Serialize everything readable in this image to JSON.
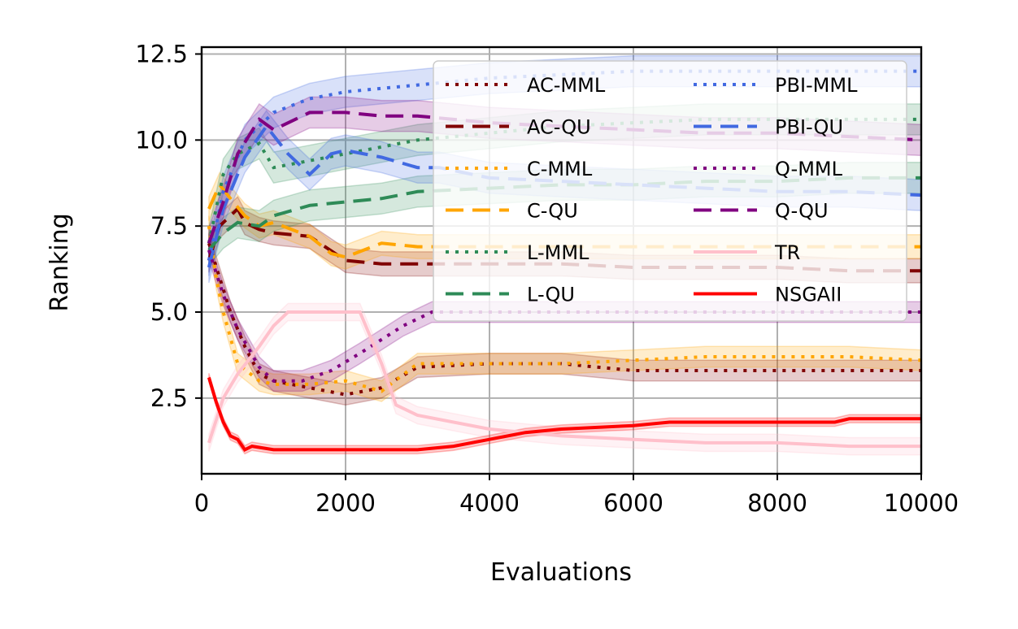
{
  "chart_data": {
    "type": "line",
    "title": "",
    "xlabel": "Evaluations",
    "ylabel": "Ranking",
    "xlim": [
      0,
      10000
    ],
    "ylim": [
      0.3,
      12.7
    ],
    "xticks": [
      0,
      2000,
      4000,
      6000,
      8000,
      10000
    ],
    "xtick_labels": [
      "0",
      "2000",
      "4000",
      "6000",
      "8000",
      "10000"
    ],
    "yticks": [
      2.5,
      5.0,
      7.5,
      10.0,
      12.5
    ],
    "ytick_labels": [
      "2.5",
      "5.0",
      "7.5",
      "10.0",
      "12.5"
    ],
    "grid": true,
    "legend_position": "top-right",
    "series": [
      {
        "name": "AC-MML",
        "color": "#800000",
        "style": "dotted",
        "x": [
          100,
          250,
          400,
          600,
          800,
          1000,
          1500,
          2000,
          2500,
          3000,
          4000,
          5000,
          6000,
          7000,
          8000,
          9000,
          10000
        ],
        "y": [
          7.0,
          6.0,
          5.0,
          4.0,
          3.2,
          3.0,
          2.8,
          2.6,
          2.8,
          3.4,
          3.5,
          3.5,
          3.3,
          3.3,
          3.3,
          3.3,
          3.3
        ],
        "band": 0.3
      },
      {
        "name": "AC-QU",
        "color": "#800000",
        "style": "dashed",
        "x": [
          100,
          250,
          400,
          500,
          600,
          800,
          1000,
          1500,
          2000,
          2500,
          3000,
          4000,
          5000,
          6000,
          7000,
          8000,
          9000,
          10000
        ],
        "y": [
          6.5,
          7.5,
          7.8,
          8.0,
          7.6,
          7.4,
          7.3,
          7.2,
          6.5,
          6.4,
          6.4,
          6.4,
          6.4,
          6.3,
          6.3,
          6.3,
          6.2,
          6.2
        ],
        "band": 0.35
      },
      {
        "name": "C-MML",
        "color": "#ffa500",
        "style": "dotted",
        "x": [
          100,
          200,
          300,
          500,
          800,
          1000,
          1500,
          2000,
          2500,
          3000,
          4000,
          5000,
          6000,
          7000,
          8000,
          9000,
          10000
        ],
        "y": [
          7.5,
          6.0,
          5.0,
          3.5,
          3.0,
          2.9,
          2.9,
          3.0,
          2.7,
          3.5,
          3.5,
          3.5,
          3.6,
          3.7,
          3.7,
          3.7,
          3.6
        ],
        "band": 0.3
      },
      {
        "name": "C-QU",
        "color": "#ffa500",
        "style": "dashed",
        "x": [
          100,
          250,
          400,
          600,
          800,
          1000,
          1500,
          1800,
          2000,
          2500,
          3000,
          4000,
          5000,
          6000,
          7000,
          8000,
          9000,
          10000
        ],
        "y": [
          8.0,
          8.7,
          8.3,
          7.8,
          7.5,
          7.6,
          7.2,
          6.7,
          6.6,
          7.0,
          6.9,
          6.9,
          6.9,
          6.9,
          6.9,
          6.9,
          6.9,
          6.9
        ],
        "band": 0.35
      },
      {
        "name": "L-MML",
        "color": "#2e8b57",
        "style": "dotted",
        "x": [
          100,
          300,
          500,
          800,
          1000,
          1500,
          2000,
          2500,
          3000,
          4000,
          5000,
          6000,
          7000,
          8000,
          9000,
          10000
        ],
        "y": [
          7.0,
          9.0,
          9.6,
          9.9,
          9.2,
          9.4,
          9.6,
          9.8,
          10.0,
          10.2,
          10.4,
          10.5,
          10.6,
          10.6,
          10.6,
          10.6
        ],
        "band": 0.45
      },
      {
        "name": "L-QU",
        "color": "#2e8b57",
        "style": "dashed",
        "x": [
          100,
          300,
          500,
          800,
          1000,
          1500,
          2000,
          2500,
          3000,
          4000,
          5000,
          6000,
          7000,
          8000,
          9000,
          10000
        ],
        "y": [
          6.8,
          7.3,
          7.6,
          7.5,
          7.8,
          8.1,
          8.2,
          8.3,
          8.5,
          8.6,
          8.7,
          8.7,
          8.8,
          8.8,
          8.9,
          8.9
        ],
        "band": 0.45
      },
      {
        "name": "PBI-MML",
        "color": "#4169e1",
        "style": "dotted",
        "x": [
          100,
          300,
          600,
          1000,
          1500,
          2000,
          3000,
          4000,
          5000,
          6000,
          7000,
          8000,
          9000,
          10000
        ],
        "y": [
          6.5,
          8.5,
          10.0,
          10.8,
          11.2,
          11.4,
          11.6,
          11.8,
          11.9,
          12.0,
          12.0,
          12.0,
          12.0,
          12.0
        ],
        "band": 0.45
      },
      {
        "name": "PBI-QU",
        "color": "#4169e1",
        "style": "dashed",
        "x": [
          100,
          300,
          600,
          900,
          1200,
          1500,
          1800,
          2000,
          2500,
          3000,
          3300,
          4000,
          5000,
          6000,
          7000,
          8000,
          9000,
          10000
        ],
        "y": [
          6.3,
          8.0,
          9.5,
          10.4,
          9.6,
          9.0,
          9.6,
          9.7,
          9.5,
          9.2,
          9.2,
          8.9,
          8.8,
          8.7,
          8.6,
          8.5,
          8.5,
          8.4
        ],
        "band": 0.45
      },
      {
        "name": "Q-MML",
        "color": "#800080",
        "style": "dotted",
        "x": [
          100,
          300,
          500,
          800,
          1000,
          1400,
          1800,
          2200,
          2800,
          3200,
          4000,
          5000,
          6000,
          7000,
          8000,
          9000,
          10000
        ],
        "y": [
          6.8,
          5.5,
          4.5,
          3.4,
          3.0,
          3.0,
          3.3,
          3.8,
          4.6,
          5.0,
          5.0,
          5.0,
          5.0,
          5.0,
          5.0,
          5.0,
          5.0
        ],
        "band": 0.3
      },
      {
        "name": "Q-QU",
        "color": "#800080",
        "style": "dashed",
        "x": [
          100,
          300,
          500,
          800,
          1000,
          1500,
          2000,
          2500,
          3000,
          4000,
          5000,
          6000,
          7000,
          8000,
          9000,
          10000
        ],
        "y": [
          7.0,
          8.2,
          9.6,
          10.6,
          10.3,
          10.8,
          10.8,
          10.7,
          10.7,
          10.5,
          10.4,
          10.3,
          10.2,
          10.2,
          10.1,
          10.0
        ],
        "band": 0.45
      },
      {
        "name": "TR",
        "color": "#ffc0cb",
        "style": "solid",
        "x": [
          100,
          300,
          500,
          800,
          1000,
          1200,
          1500,
          2000,
          2200,
          2500,
          2700,
          3000,
          4000,
          5000,
          6000,
          7000,
          8000,
          9000,
          10000
        ],
        "y": [
          1.2,
          2.5,
          3.2,
          4.0,
          4.6,
          5.0,
          5.0,
          5.0,
          5.0,
          3.5,
          2.3,
          2.0,
          1.6,
          1.4,
          1.3,
          1.2,
          1.2,
          1.1,
          1.1
        ],
        "band": 0.25
      },
      {
        "name": "NSGAII",
        "color": "#ff0000",
        "style": "solid",
        "x": [
          100,
          200,
          300,
          400,
          500,
          600,
          700,
          1000,
          1500,
          2000,
          3000,
          3500,
          4000,
          4500,
          5000,
          6000,
          6500,
          7000,
          8000,
          8800,
          9000,
          10000
        ],
        "y": [
          3.1,
          2.4,
          1.8,
          1.4,
          1.3,
          1.0,
          1.1,
          1.0,
          1.0,
          1.0,
          1.0,
          1.1,
          1.3,
          1.5,
          1.6,
          1.7,
          1.8,
          1.8,
          1.8,
          1.8,
          1.9,
          1.9
        ],
        "band": 0.12
      }
    ]
  }
}
